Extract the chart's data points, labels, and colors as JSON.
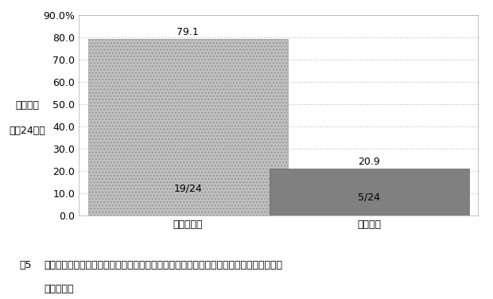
{
  "categories": [
    "非適正使用",
    "適正使用"
  ],
  "values": [
    79.1,
    20.9
  ],
  "labels_inside": [
    "19/24",
    "5/24"
  ],
  "labels_above": [
    "79.1",
    "20.9"
  ],
  "bar_colors": [
    "#c0c0c0",
    "#808080"
  ],
  "ylabel_line1": "再発症例",
  "ylabel_line2": "（全24例）",
  "ylim": [
    0,
    90
  ],
  "yticks": [
    0.0,
    10.0,
    20.0,
    30.0,
    40.0,
    50.0,
    60.0,
    70.0,
    80.0,
    90.0
  ],
  "ytick_top_label": "90.0%",
  "grid_color": "#bbbbbb",
  "bg_color": "#ffffff",
  "caption_fig": "囵5",
  "caption_text": "再発例において非適正使用の方が適正使用例に比べ，明らかに再発する頻度が高いことが",
  "caption_text2": "判明した。",
  "bar_width": 0.55,
  "bar_positions": [
    0.3,
    0.75
  ],
  "label_fontsize": 9,
  "tick_fontsize": 9,
  "ylabel_fontsize": 9,
  "caption_fontsize": 9
}
